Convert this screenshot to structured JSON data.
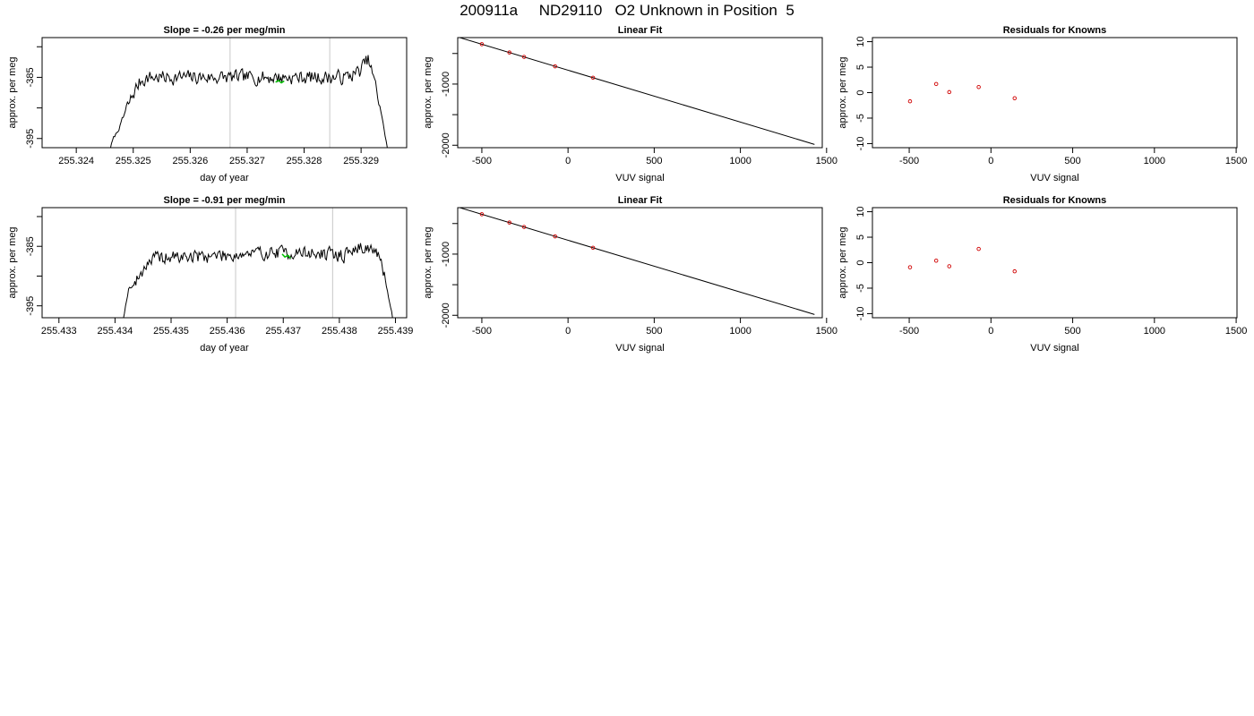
{
  "main_title": "200911a     ND29110   O2 Unknown in Position  5",
  "colors": {
    "line": "#000000",
    "vline": "#c8c8c8",
    "point": "#d00000",
    "highlight": "#00c000",
    "box": "#000000"
  },
  "chart_data": [
    {
      "id": "p11",
      "type": "line",
      "title": "Slope =  -0.26  per meg/min",
      "xlabel": "day of year",
      "ylabel": "approx. per meg",
      "xlim": [
        255.3234,
        255.3298
      ],
      "ylim": [
        -396.5,
        -378.5
      ],
      "xticks": [
        255.324,
        255.325,
        255.326,
        255.327,
        255.328,
        255.329
      ],
      "xtick_labels": [
        "255.324",
        "255.325",
        "255.326",
        "255.327",
        "255.328",
        "255.329"
      ],
      "yticks": [
        -395,
        -390,
        -385,
        -380
      ],
      "ytick_labels": [
        "-395",
        "",
        "-385",
        ""
      ],
      "vlines": [
        255.3267,
        255.32845
      ],
      "highlight": {
        "x": [
          255.3275,
          255.32755,
          255.3276,
          255.32765
        ],
        "y": [
          -385.8,
          -385.5,
          -385.9,
          -385.6
        ]
      },
      "series": [
        {
          "x_start": 255.3246,
          "x_end": 255.32946,
          "keypoints": [
            [
              0,
              -396.5
            ],
            [
              0.01,
              -395
            ],
            [
              0.03,
              -393.5
            ],
            [
              0.06,
              -390
            ],
            [
              0.09,
              -387
            ],
            [
              0.11,
              -385.5
            ],
            [
              0.14,
              -385
            ],
            [
              0.35,
              -385
            ],
            [
              0.6,
              -385
            ],
            [
              0.85,
              -385
            ],
            [
              0.9,
              -384
            ],
            [
              0.93,
              -382
            ],
            [
              0.95,
              -385
            ],
            [
              0.975,
              -390
            ],
            [
              1,
              -396.5
            ]
          ],
          "noise": 1.6,
          "seed": 7
        }
      ]
    },
    {
      "id": "p12",
      "type": "line",
      "title": "Linear Fit",
      "xlabel": "VUV signal",
      "ylabel": "approx. per meg",
      "xlim": [
        -640,
        1475
      ],
      "ylim": [
        -2040,
        -240
      ],
      "xticks": [
        -500,
        0,
        500,
        1000,
        1500
      ],
      "xtick_labels": [
        "-500",
        "0",
        "500",
        "1000",
        "1500"
      ],
      "yticks": [
        -2000,
        -1500,
        -1000,
        -500
      ],
      "ytick_labels": [
        "-2000",
        "",
        "-1000",
        ""
      ],
      "fit": {
        "slope": -0.8485,
        "intercept": -773,
        "x_range": [
          -650,
          1430
        ]
      },
      "points": {
        "x": [
          -500,
          -340,
          -255,
          -75,
          145
        ],
        "y": [
          -348,
          -484,
          -556,
          -710,
          -896
        ]
      },
      "highlight_points": {
        "x": [
          -652
        ],
        "y": [
          -220
        ]
      }
    },
    {
      "id": "p13",
      "type": "scatter",
      "title": "Residuals for Knowns",
      "xlabel": "VUV signal",
      "ylabel": "approx. per meg",
      "xlim": [
        -725,
        1505
      ],
      "ylim": [
        -10.8,
        10.8
      ],
      "xticks": [
        -500,
        0,
        500,
        1000,
        1500
      ],
      "xtick_labels": [
        "-500",
        "0",
        "500",
        "1000",
        "1500"
      ],
      "yticks": [
        -10,
        -5,
        0,
        5,
        10
      ],
      "ytick_labels": [
        "-10",
        "-5",
        "0",
        "5",
        "10"
      ],
      "points": {
        "x": [
          -495,
          -335,
          -255,
          -75,
          145
        ],
        "y": [
          -1.7,
          1.7,
          0.1,
          1.1,
          -1.1
        ]
      }
    },
    {
      "id": "p21",
      "type": "line",
      "title": "Slope =  -0.91  per meg/min",
      "xlabel": "day of year",
      "ylabel": "approx. per meg",
      "xlim": [
        255.4327,
        255.4392
      ],
      "ylim": [
        -397,
        -378.5
      ],
      "xticks": [
        255.433,
        255.434,
        255.435,
        255.436,
        255.437,
        255.438,
        255.439
      ],
      "xtick_labels": [
        "255.433",
        "255.434",
        "255.435",
        "255.436",
        "255.437",
        "255.438",
        "255.439"
      ],
      "yticks": [
        -395,
        -390,
        -385,
        -380
      ],
      "ytick_labels": [
        "-395",
        "",
        "-385",
        ""
      ],
      "vlines": [
        255.43615,
        255.43788
      ],
      "highlight": {
        "x": [
          255.43698,
          255.43703,
          255.43708,
          255.43713
        ],
        "y": [
          -386.3,
          -386.8,
          -386.5,
          -387
        ]
      },
      "series": [
        {
          "x_start": 255.43415,
          "x_end": 255.43895,
          "keypoints": [
            [
              0,
              -397
            ],
            [
              0.02,
              -392
            ],
            [
              0.04,
              -391.5
            ],
            [
              0.06,
              -390
            ],
            [
              0.09,
              -387.5
            ],
            [
              0.12,
              -387
            ],
            [
              0.6,
              -386
            ],
            [
              0.82,
              -386.5
            ],
            [
              0.86,
              -385.5
            ],
            [
              0.9,
              -385
            ],
            [
              0.94,
              -386
            ],
            [
              0.97,
              -390
            ],
            [
              1,
              -397
            ]
          ],
          "noise": 1.6,
          "seed": 19
        }
      ]
    },
    {
      "id": "p22",
      "type": "line",
      "title": "Linear Fit",
      "xlabel": "VUV signal",
      "ylabel": "approx. per meg",
      "xlim": [
        -640,
        1475
      ],
      "ylim": [
        -2040,
        -240
      ],
      "xticks": [
        -500,
        0,
        500,
        1000,
        1500
      ],
      "xtick_labels": [
        "-500",
        "0",
        "500",
        "1000",
        "1500"
      ],
      "yticks": [
        -2000,
        -1500,
        -1000,
        -500
      ],
      "ytick_labels": [
        "-2000",
        "",
        "-1000",
        ""
      ],
      "fit": {
        "slope": -0.8485,
        "intercept": -773,
        "x_range": [
          -650,
          1430
        ]
      },
      "points": {
        "x": [
          -500,
          -340,
          -255,
          -75,
          145
        ],
        "y": [
          -348,
          -484,
          -556,
          -710,
          -896
        ]
      },
      "highlight_points": {
        "x": [
          -652
        ],
        "y": [
          -220
        ]
      }
    },
    {
      "id": "p23",
      "type": "scatter",
      "title": "Residuals for Knowns",
      "xlabel": "VUV signal",
      "ylabel": "approx. per meg",
      "xlim": [
        -725,
        1505
      ],
      "ylim": [
        -10.8,
        10.8
      ],
      "xticks": [
        -500,
        0,
        500,
        1000,
        1500
      ],
      "xtick_labels": [
        "-500",
        "0",
        "500",
        "1000",
        "1500"
      ],
      "yticks": [
        -10,
        -5,
        0,
        5,
        10
      ],
      "ytick_labels": [
        "-10",
        "-5",
        "0",
        "5",
        "10"
      ],
      "points": {
        "x": [
          -495,
          -335,
          -255,
          -75,
          145
        ],
        "y": [
          -0.9,
          0.4,
          -0.7,
          2.7,
          -1.7
        ]
      }
    }
  ]
}
